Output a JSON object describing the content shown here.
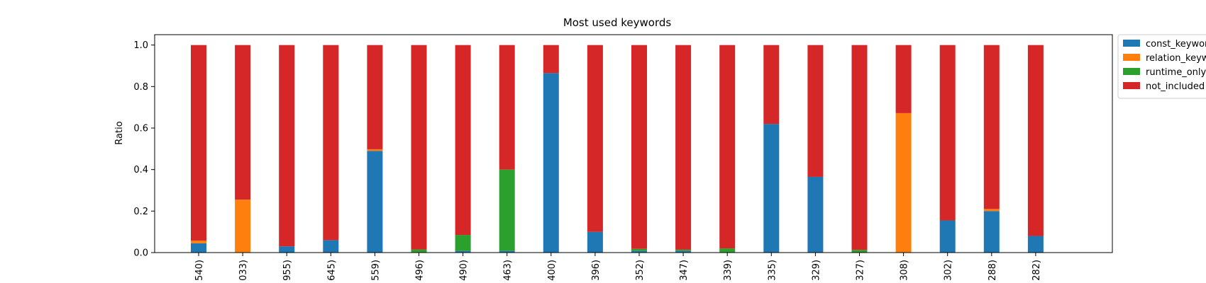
{
  "chart_data": {
    "type": "bar",
    "stacked": true,
    "title": "Most used keywords",
    "xlabel": "",
    "ylabel": "Ratio",
    "ylim": [
      0,
      1.05
    ],
    "yticks": [
      "0.0",
      "0.2",
      "0.4",
      "0.6",
      "0.8",
      "1.0"
    ],
    "categories": [
      "540)",
      "033)",
      "955)",
      "645)",
      "559)",
      "496)",
      "490)",
      "463)",
      "400)",
      "396)",
      "352)",
      "347)",
      "339)",
      "335)",
      "329)",
      "327)",
      "308)",
      "302)",
      "288)",
      "282)"
    ],
    "series": [
      {
        "name": "const_keyword",
        "color": "#1f77b4",
        "values": [
          0.045,
          0.0,
          0.03,
          0.06,
          0.49,
          0.0,
          0.008,
          0.008,
          0.865,
          0.1,
          0.008,
          0.008,
          0.0,
          0.62,
          0.365,
          0.0,
          0.0,
          0.155,
          0.2,
          0.08
        ]
      },
      {
        "name": "relation_keyword",
        "color": "#ff7f0e",
        "values": [
          0.013,
          0.255,
          0.0,
          0.0,
          0.008,
          0.0,
          0.0,
          0.0,
          0.0,
          0.0,
          0.0,
          0.0,
          0.0,
          0.0,
          0.0,
          0.0,
          0.672,
          0.0,
          0.01,
          0.0
        ]
      },
      {
        "name": "runtime_only",
        "color": "#2ca02c",
        "values": [
          0.0,
          0.0,
          0.0,
          0.0,
          0.0,
          0.015,
          0.077,
          0.392,
          0.0,
          0.0,
          0.01,
          0.006,
          0.02,
          0.0,
          0.0,
          0.013,
          0.0,
          0.0,
          0.0,
          0.0
        ]
      },
      {
        "name": "not_included",
        "color": "#d62728",
        "values": [
          0.942,
          0.745,
          0.97,
          0.94,
          0.502,
          0.985,
          0.915,
          0.6,
          0.135,
          0.9,
          0.982,
          0.986,
          0.98,
          0.38,
          0.635,
          0.987,
          0.328,
          0.845,
          0.79,
          0.92
        ]
      }
    ],
    "legend": "outside-top-right",
    "grid": false
  }
}
